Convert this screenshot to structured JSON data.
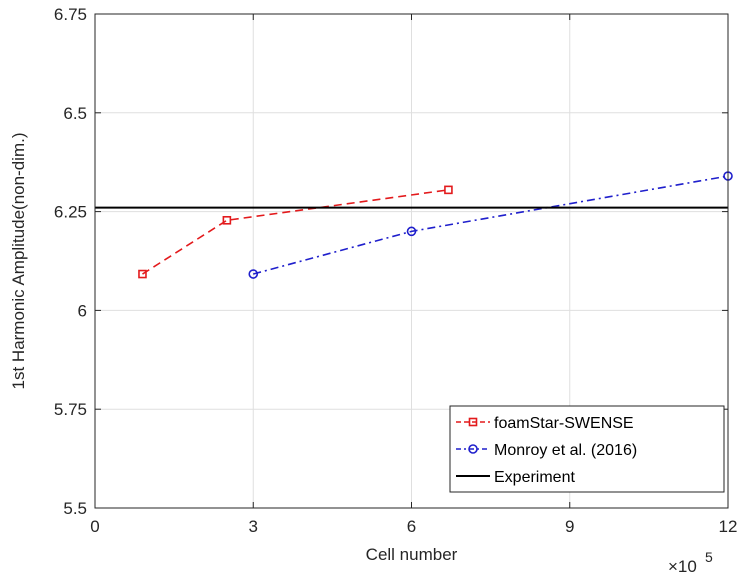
{
  "chart_data": {
    "type": "line",
    "title": "",
    "xlabel": "Cell number",
    "ylabel": "1st Harmonic Amplitude(non-dim.)",
    "x_multiplier_base": "×10",
    "x_multiplier_exponent": "5",
    "xlim": [
      0,
      12
    ],
    "ylim": [
      5.5,
      6.75
    ],
    "xticks": [
      0,
      3,
      6,
      9,
      12
    ],
    "xtick_labels": [
      "0",
      "3",
      "6",
      "9",
      "12"
    ],
    "yticks": [
      5.5,
      5.75,
      6,
      6.25,
      6.5,
      6.75
    ],
    "ytick_labels": [
      "5.5",
      "5.75",
      "6",
      "6.25",
      "6.5",
      "6.75"
    ],
    "grid": true,
    "legend_position": "bottom-right",
    "series": [
      {
        "name": "foamStar-SWENSE",
        "color": "#e31a1c",
        "line_style": "dashed",
        "marker": "square",
        "x": [
          0.9,
          2.5,
          6.7
        ],
        "y": [
          6.092,
          6.228,
          6.305
        ]
      },
      {
        "name": "Monroy et al. (2016)",
        "color": "#1f1fcc",
        "line_style": "dash-dot",
        "marker": "circle",
        "x": [
          3,
          6,
          12
        ],
        "y": [
          6.092,
          6.2,
          6.34
        ]
      },
      {
        "name": "Experiment",
        "color": "#000000",
        "line_style": "solid",
        "marker": "none",
        "x": [
          0,
          12
        ],
        "y": [
          6.26,
          6.26
        ]
      }
    ]
  }
}
